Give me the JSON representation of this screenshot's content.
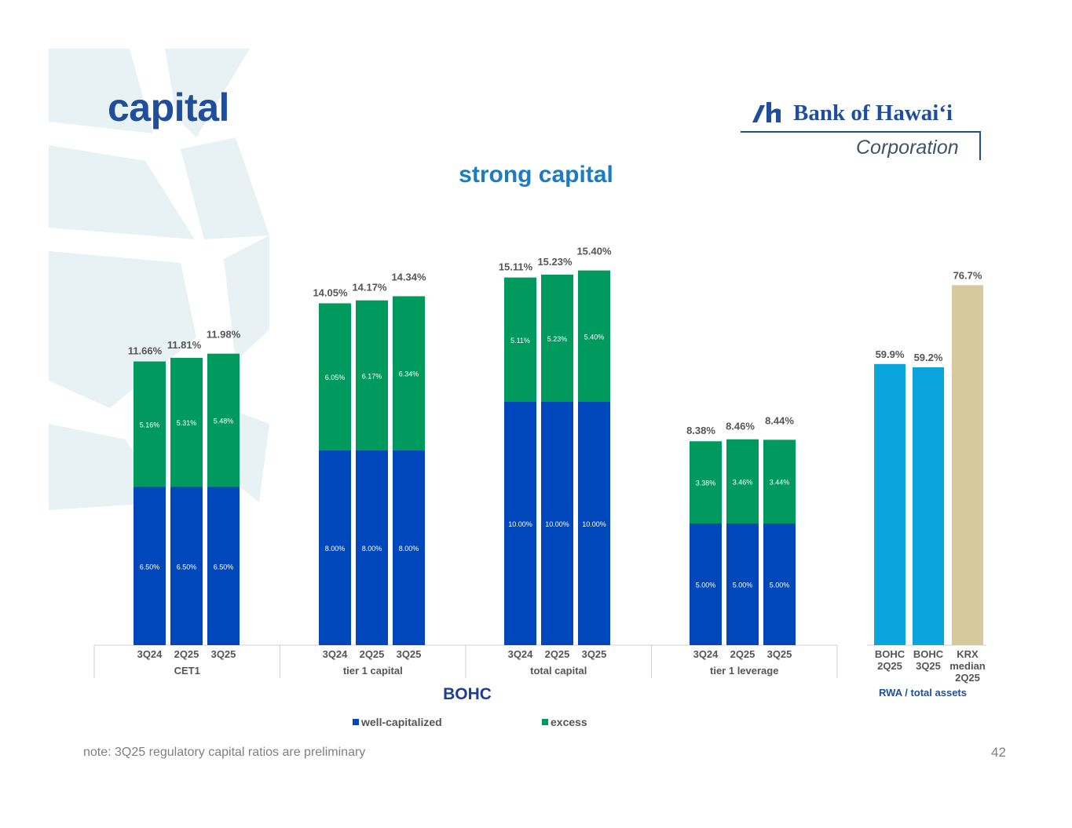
{
  "header": {
    "title": "capital",
    "subtitle": "strong capital",
    "logo_name": "Bank of Hawaiʻi",
    "logo_sub": "Corporation"
  },
  "footer": {
    "note": "note: 3Q25 regulatory capital ratios are preliminary",
    "page_number": "42"
  },
  "colors": {
    "well_capitalized": "#0047bb",
    "excess": "#009a5e",
    "bohc_rwa": "#0aa5dd",
    "krx": "#d6c99c",
    "title": "#1f4e9d"
  },
  "chart_data": [
    {
      "type": "bar",
      "stacked": true,
      "title": "BOHC",
      "groups": [
        "CET1",
        "tier 1 capital",
        "total capital",
        "tier 1 leverage"
      ],
      "categories": [
        "3Q24",
        "2Q25",
        "3Q25"
      ],
      "ylim": [
        0,
        16
      ],
      "series": [
        {
          "name": "well-capitalized",
          "values": [
            [
              6.5,
              6.5,
              6.5
            ],
            [
              8.0,
              8.0,
              8.0
            ],
            [
              10.0,
              10.0,
              10.0
            ],
            [
              5.0,
              5.0,
              5.0
            ]
          ]
        },
        {
          "name": "excess",
          "values": [
            [
              5.16,
              5.31,
              5.48
            ],
            [
              6.05,
              6.17,
              6.34
            ],
            [
              5.11,
              5.23,
              5.4
            ],
            [
              3.38,
              3.46,
              3.44
            ]
          ]
        }
      ],
      "segment_labels": {
        "well-capitalized": [
          [
            "6.50%",
            "6.50%",
            "6.50%"
          ],
          [
            "8.00%",
            "8.00%",
            "8.00%"
          ],
          [
            "10.00%",
            "10.00%",
            "10.00%"
          ],
          [
            "5.00%",
            "5.00%",
            "5.00%"
          ]
        ],
        "excess": [
          [
            "5.16%",
            "5.31%",
            "5.48%"
          ],
          [
            "6.05%",
            "6.17%",
            "6.34%"
          ],
          [
            "5.11%",
            "5.23%",
            "5.40%"
          ],
          [
            "3.38%",
            "3.46%",
            "3.44%"
          ]
        ]
      },
      "totals": [
        [
          "11.66%",
          "11.81%",
          "11.98%"
        ],
        [
          "14.05%",
          "14.17%",
          "14.34%"
        ],
        [
          "15.11%",
          "15.23%",
          "15.40%"
        ],
        [
          "8.38%",
          "8.46%",
          "8.44%"
        ]
      ],
      "total_values": [
        [
          11.66,
          11.81,
          11.98
        ],
        [
          14.05,
          14.17,
          14.34
        ],
        [
          15.11,
          15.23,
          15.4
        ],
        [
          8.38,
          8.46,
          8.44
        ]
      ],
      "legend": [
        "well-capitalized",
        "excess"
      ],
      "legend_position": "bottom"
    },
    {
      "type": "bar",
      "title": "RWA / total assets",
      "categories": [
        [
          "BOHC",
          "2Q25"
        ],
        [
          "BOHC",
          "3Q25"
        ],
        [
          "KRX",
          "median",
          "2Q25"
        ]
      ],
      "values": [
        59.9,
        59.2,
        76.7
      ],
      "labels": [
        "59.9%",
        "59.2%",
        "76.7%"
      ],
      "ylim": [
        0,
        100
      ]
    }
  ]
}
